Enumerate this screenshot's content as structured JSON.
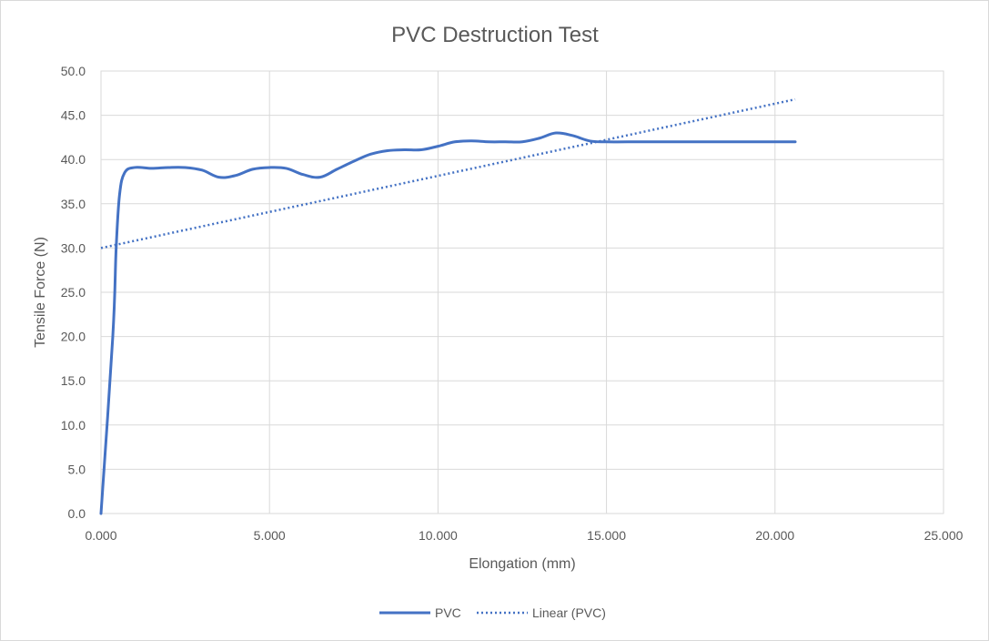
{
  "chart_data": {
    "type": "line",
    "title": "PVC Destruction Test",
    "xlabel": "Elongation (mm)",
    "ylabel": "Tensile Force (N)",
    "xlim": [
      0,
      25
    ],
    "ylim": [
      0,
      50
    ],
    "x_ticks": [
      "0.000",
      "5.000",
      "10.000",
      "15.000",
      "20.000",
      "25.000"
    ],
    "y_ticks": [
      "0.0",
      "5.0",
      "10.0",
      "15.0",
      "20.0",
      "25.0",
      "30.0",
      "35.0",
      "40.0",
      "45.0",
      "50.0"
    ],
    "grid": true,
    "legend_position": "bottom",
    "series": [
      {
        "name": "PVC",
        "style": "solid",
        "color": "#4472c4",
        "x": [
          0.0,
          0.35,
          0.45,
          0.55,
          0.7,
          1.0,
          1.5,
          2.0,
          2.5,
          3.0,
          3.5,
          4.0,
          4.5,
          5.0,
          5.5,
          6.0,
          6.5,
          7.0,
          7.5,
          8.0,
          8.5,
          9.0,
          9.5,
          10.0,
          10.5,
          11.0,
          11.5,
          12.0,
          12.5,
          13.0,
          13.5,
          14.0,
          14.5,
          15.0,
          16.0,
          17.0,
          18.0,
          19.0,
          20.0,
          20.6
        ],
        "y": [
          0.0,
          20.0,
          30.0,
          36.0,
          38.5,
          39.1,
          39.0,
          39.1,
          39.1,
          38.8,
          38.0,
          38.2,
          38.9,
          39.1,
          39.0,
          38.3,
          38.0,
          38.9,
          39.8,
          40.6,
          41.0,
          41.1,
          41.1,
          41.5,
          42.0,
          42.1,
          42.0,
          42.0,
          42.0,
          42.4,
          43.0,
          42.7,
          42.1,
          42.0,
          42.0,
          42.0,
          42.0,
          42.0,
          42.0,
          42.0
        ]
      },
      {
        "name": "Linear (PVC)",
        "style": "dotted",
        "color": "#4472c4",
        "x": [
          0.0,
          20.6
        ],
        "y": [
          30.0,
          46.8
        ]
      }
    ]
  }
}
